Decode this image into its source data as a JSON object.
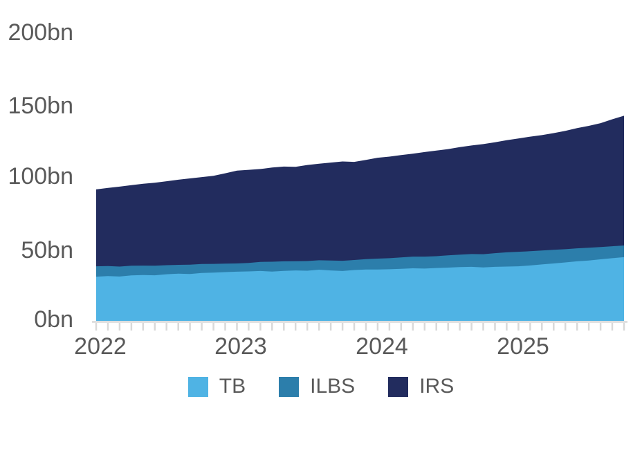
{
  "colors": {
    "background": "#FFFFFF",
    "axis": "#D9D9D9",
    "text": "#595959",
    "tb": "#4FB3E4",
    "ilbs": "#2C7EAB",
    "irs": "#222C5E"
  },
  "chart_data": {
    "type": "area",
    "stacked": true,
    "title": "",
    "xlabel": "",
    "ylabel": "",
    "ylim": [
      0,
      200
    ],
    "grid": false,
    "legend_position": "bottom",
    "y_axis": {
      "labels": [
        "200bn",
        "150bn",
        "100bn",
        "50bn",
        "0bn"
      ],
      "values": [
        200,
        150,
        100,
        50,
        0
      ]
    },
    "x_axis": {
      "labels": [
        "2022",
        "2023",
        "2024",
        "2025"
      ],
      "tick_month_indices": [
        0,
        12,
        24,
        36
      ],
      "minor_ticks": "monthly",
      "range_note": "monthly points Jan 2022 through Oct 2025"
    },
    "series": [
      {
        "name": "TB",
        "color": "#4FB3E4",
        "values": [
          31.0,
          31.4,
          31.1,
          31.9,
          32.2,
          32.0,
          32.7,
          33.1,
          32.9,
          33.6,
          33.9,
          34.2,
          34.5,
          34.7,
          35.0,
          34.6,
          35.1,
          35.4,
          35.2,
          35.9,
          35.4,
          35.0,
          35.7,
          36.0,
          36.0,
          36.2,
          36.5,
          36.9,
          36.7,
          37.1,
          37.4,
          37.7,
          37.9,
          37.5,
          37.9,
          38.1,
          38.3,
          38.9,
          39.6,
          40.3,
          41.0,
          41.8,
          42.4,
          43.2,
          44.0,
          44.7
        ]
      },
      {
        "name": "ILBS",
        "color": "#2C7EAB",
        "values": [
          7.3,
          7.1,
          7.0,
          6.8,
          6.6,
          6.7,
          6.4,
          6.2,
          6.5,
          6.3,
          6.1,
          6.0,
          5.8,
          6.0,
          6.4,
          6.9,
          6.7,
          6.5,
          6.8,
          6.6,
          7.0,
          7.2,
          7.0,
          7.3,
          7.7,
          7.8,
          8.0,
          8.2,
          8.4,
          8.3,
          8.6,
          8.8,
          9.0,
          9.3,
          9.6,
          10.0,
          10.2,
          10.0,
          9.8,
          9.6,
          9.3,
          9.1,
          8.9,
          8.6,
          8.4,
          8.2
        ]
      },
      {
        "name": "IRS",
        "color": "#222C5E",
        "values": [
          54.0,
          54.8,
          56.1,
          56.6,
          57.4,
          58.3,
          58.9,
          59.8,
          60.6,
          61.0,
          61.8,
          63.4,
          65.2,
          65.3,
          65.2,
          66.1,
          66.5,
          66.2,
          67.4,
          67.8,
          68.7,
          69.7,
          68.9,
          69.7,
          70.8,
          71.3,
          71.9,
          72.3,
          73.4,
          74.1,
          74.6,
          75.5,
          76.2,
          77.3,
          77.9,
          78.7,
          79.5,
          80.4,
          81.0,
          81.9,
          83.1,
          84.4,
          85.6,
          87.0,
          89.1,
          91.1
        ]
      }
    ]
  }
}
